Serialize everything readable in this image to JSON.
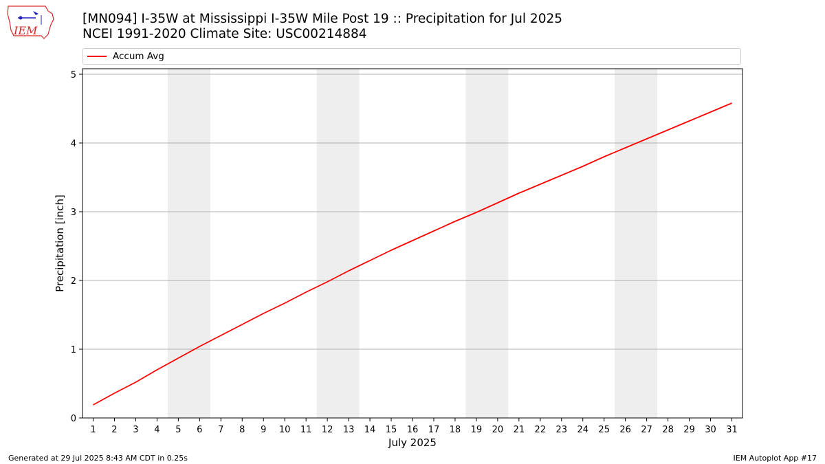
{
  "header": {
    "title_line1": "[MN094] I-35W at Mississippi I-35W Mile Post 19 :: Precipitation for Jul 2025",
    "title_line2": "NCEI 1991-2020 Climate Site: USC00214884",
    "logo_text": "IEM"
  },
  "footer": {
    "left": "Generated at 29 Jul 2025 8:43 AM CDT in 0.25s",
    "right": "IEM Autoplot App #17"
  },
  "colors": {
    "line": "#ff0000",
    "weekend_shade": "#eeeeee",
    "grid": "#b0b0b0",
    "logo_red": "#d62728",
    "logo_blue": "#1f1fbf"
  },
  "chart_data": {
    "type": "line",
    "xlabel": "July 2025",
    "ylabel": "Precipitation [inch]",
    "xlim": [
      0.5,
      31.5
    ],
    "ylim": [
      0,
      5.08
    ],
    "yticks": [
      0,
      1,
      2,
      3,
      4,
      5
    ],
    "grid": "horizontal",
    "legend": "top",
    "weekend_shading": [
      [
        4.5,
        6.5
      ],
      [
        11.5,
        13.5
      ],
      [
        18.5,
        20.5
      ],
      [
        25.5,
        27.5
      ]
    ],
    "categories": [
      "1",
      "2",
      "3",
      "4",
      "5",
      "6",
      "7",
      "8",
      "9",
      "10",
      "11",
      "12",
      "13",
      "14",
      "15",
      "16",
      "17",
      "18",
      "19",
      "20",
      "21",
      "22",
      "23",
      "24",
      "25",
      "26",
      "27",
      "28",
      "29",
      "30",
      "31"
    ],
    "series": [
      {
        "name": "Accum Avg",
        "values": [
          0.19,
          0.36,
          0.52,
          0.7,
          0.87,
          1.04,
          1.2,
          1.36,
          1.52,
          1.67,
          1.83,
          1.98,
          2.14,
          2.29,
          2.44,
          2.58,
          2.72,
          2.86,
          2.99,
          3.13,
          3.27,
          3.4,
          3.53,
          3.66,
          3.8,
          3.93,
          4.06,
          4.19,
          4.32,
          4.45,
          4.58
        ]
      }
    ]
  }
}
